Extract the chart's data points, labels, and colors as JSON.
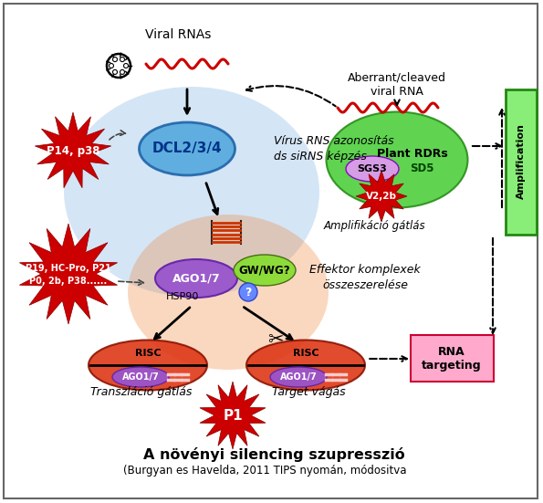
{
  "title": "A növényi silencing szupresszió",
  "subtitle": "(Burgyan es Havelda, 2011 TIPS nyomán, módositva",
  "bg_color": "#ffffff",
  "border_color": "#888888",
  "viral_rnas_label": "Viral RNAs",
  "dcl_label": "DCL2/3/4",
  "virus_text1": "Vírus RNS azonosítás",
  "virus_text2": "ds siRNS képzés",
  "aberrant_text1": "Aberrant/cleaved",
  "aberrant_text2": "viral RNA",
  "plant_rdrs_label": "Plant RDRs",
  "sgs3_label": "SGS3",
  "sd5_label": "SD5",
  "v22b_label": "V2,2b",
  "amplif_label": "Amplifikáció gátlás",
  "amplification_label": "Amplification",
  "p14_label": "P14, p38",
  "p19_line1": "P19, HC-Pro, P21",
  "p19_line2": "P0, 2b, P38......",
  "ago_label": "AGO1/7",
  "gwwg_label": "GW/WG?",
  "hsp90_label": "HSP90",
  "effektor_text1": "Effektor komplexek",
  "effektor_text2": "összeszerelése",
  "risc_label": "RISC",
  "ago_risc_label": "AGO1/7",
  "transzl_label": "Transzláció gátlás",
  "target_label": "Target vágás",
  "rna_targeting_label": "RNA\ntargeting",
  "p1_label": "P1",
  "red_burst_color": "#cc0000",
  "red_burst_edge": "#880000"
}
